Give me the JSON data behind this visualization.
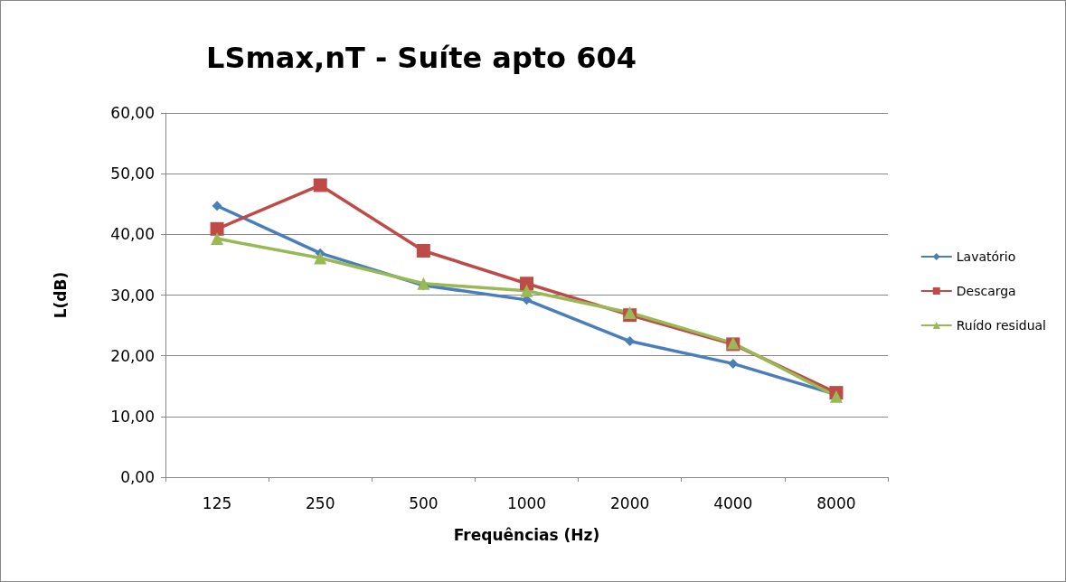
{
  "chart_data": {
    "type": "line",
    "title": "LSmax,nT - Suíte apto 604",
    "xlabel": "Frequências (Hz)",
    "ylabel": "L(dB)",
    "categories": [
      "125",
      "250",
      "500",
      "1000",
      "2000",
      "4000",
      "8000"
    ],
    "series": [
      {
        "name": "Lavatório",
        "color": "#4a7ebb",
        "marker": "diamond",
        "values": [
          44.7,
          36.9,
          31.6,
          29.2,
          22.4,
          18.7,
          13.6
        ]
      },
      {
        "name": "Descarga",
        "color": "#be4b48",
        "marker": "square",
        "values": [
          40.9,
          48.1,
          37.3,
          31.9,
          26.7,
          21.9,
          13.9
        ]
      },
      {
        "name": "Ruído residual",
        "color": "#98b954",
        "marker": "triangle",
        "values": [
          39.3,
          36.1,
          31.9,
          30.7,
          27.1,
          22.1,
          13.3
        ]
      }
    ],
    "ylim": [
      0,
      60
    ],
    "yticks": [
      {
        "value": 0,
        "label": "0,00"
      },
      {
        "value": 10,
        "label": "10,00"
      },
      {
        "value": 20,
        "label": "20,00"
      },
      {
        "value": 30,
        "label": "30,00"
      },
      {
        "value": 40,
        "label": "40,00"
      },
      {
        "value": 50,
        "label": "50,00"
      },
      {
        "value": 60,
        "label": "60,00"
      }
    ],
    "grid": "y",
    "legend": "right",
    "line_style": "solid"
  }
}
